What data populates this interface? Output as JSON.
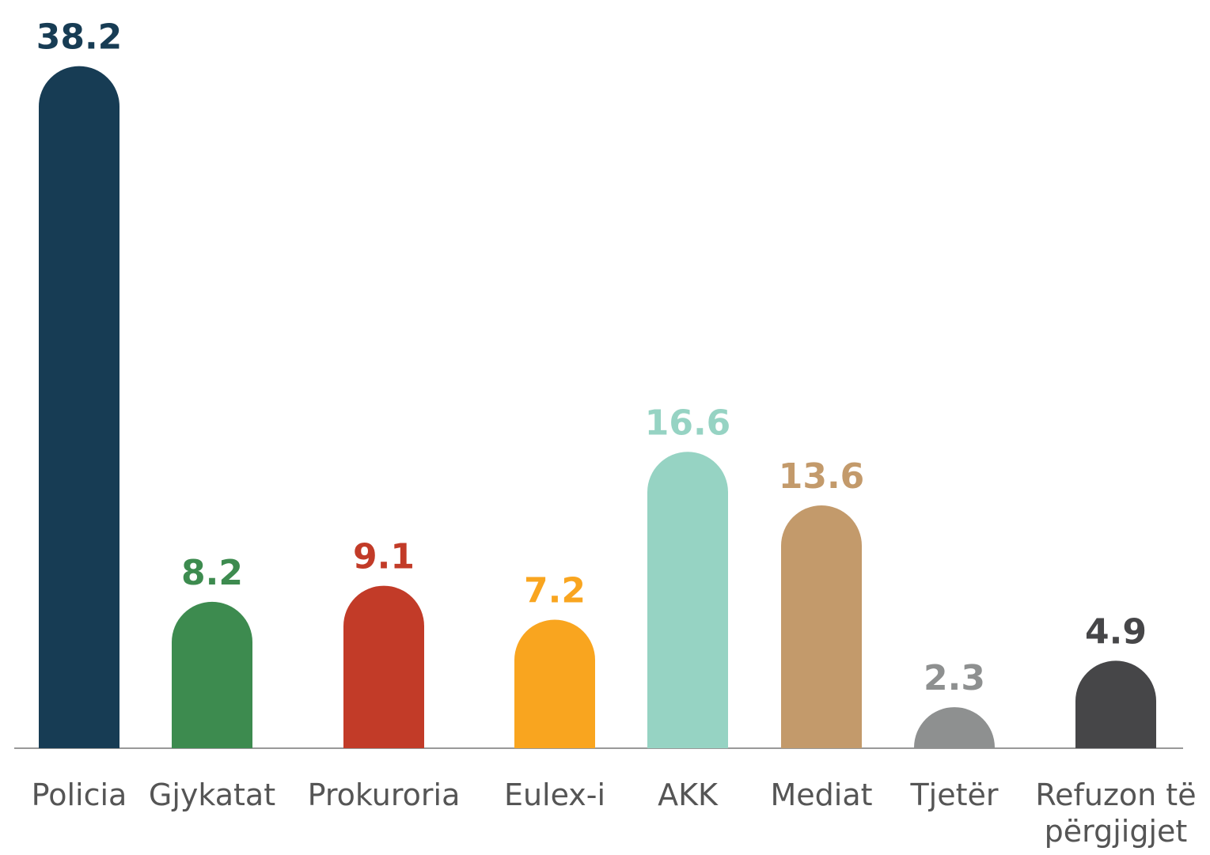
{
  "chart_data": {
    "type": "bar",
    "categories": [
      "Policia",
      "Gjykatat",
      "Prokuroria",
      "Eulex-i",
      "AKK",
      "Mediat",
      "Tjetër",
      "Refuzon të përgjigjet"
    ],
    "values": [
      38.2,
      8.2,
      9.1,
      7.2,
      16.6,
      13.6,
      2.3,
      4.9
    ],
    "colors": [
      "#173c54",
      "#3d8b4f",
      "#c23b28",
      "#f9a51f",
      "#96d3c3",
      "#c39a6b",
      "#8e9090",
      "#464648"
    ],
    "ylim": [
      0,
      40
    ]
  }
}
